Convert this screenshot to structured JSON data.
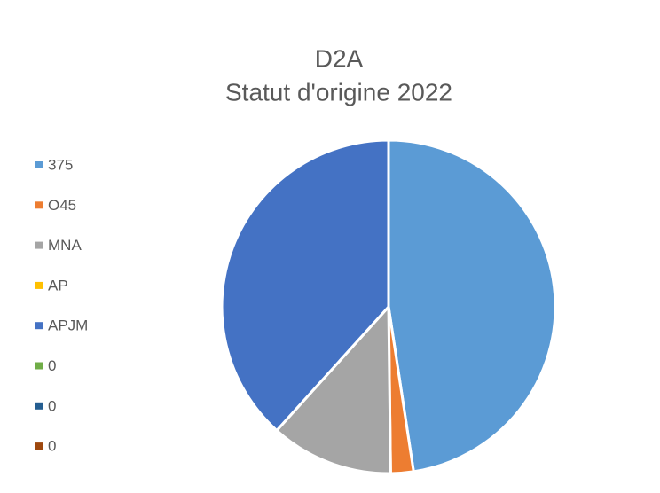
{
  "chart_data": {
    "type": "pie",
    "title": "D2A",
    "subtitle": "Statut d'origine 2022",
    "categories": [
      "375",
      "O45",
      "MNA",
      "AP",
      "APJM",
      "0",
      "0",
      "0"
    ],
    "values": [
      47.6,
      2.2,
      11.9,
      0,
      38.3,
      0,
      0,
      0
    ],
    "colors": [
      "#5b9bd5",
      "#ed7d31",
      "#a5a5a5",
      "#ffc000",
      "#4472c4",
      "#70ad47",
      "#255e91",
      "#9e480e"
    ],
    "legend": "left"
  }
}
